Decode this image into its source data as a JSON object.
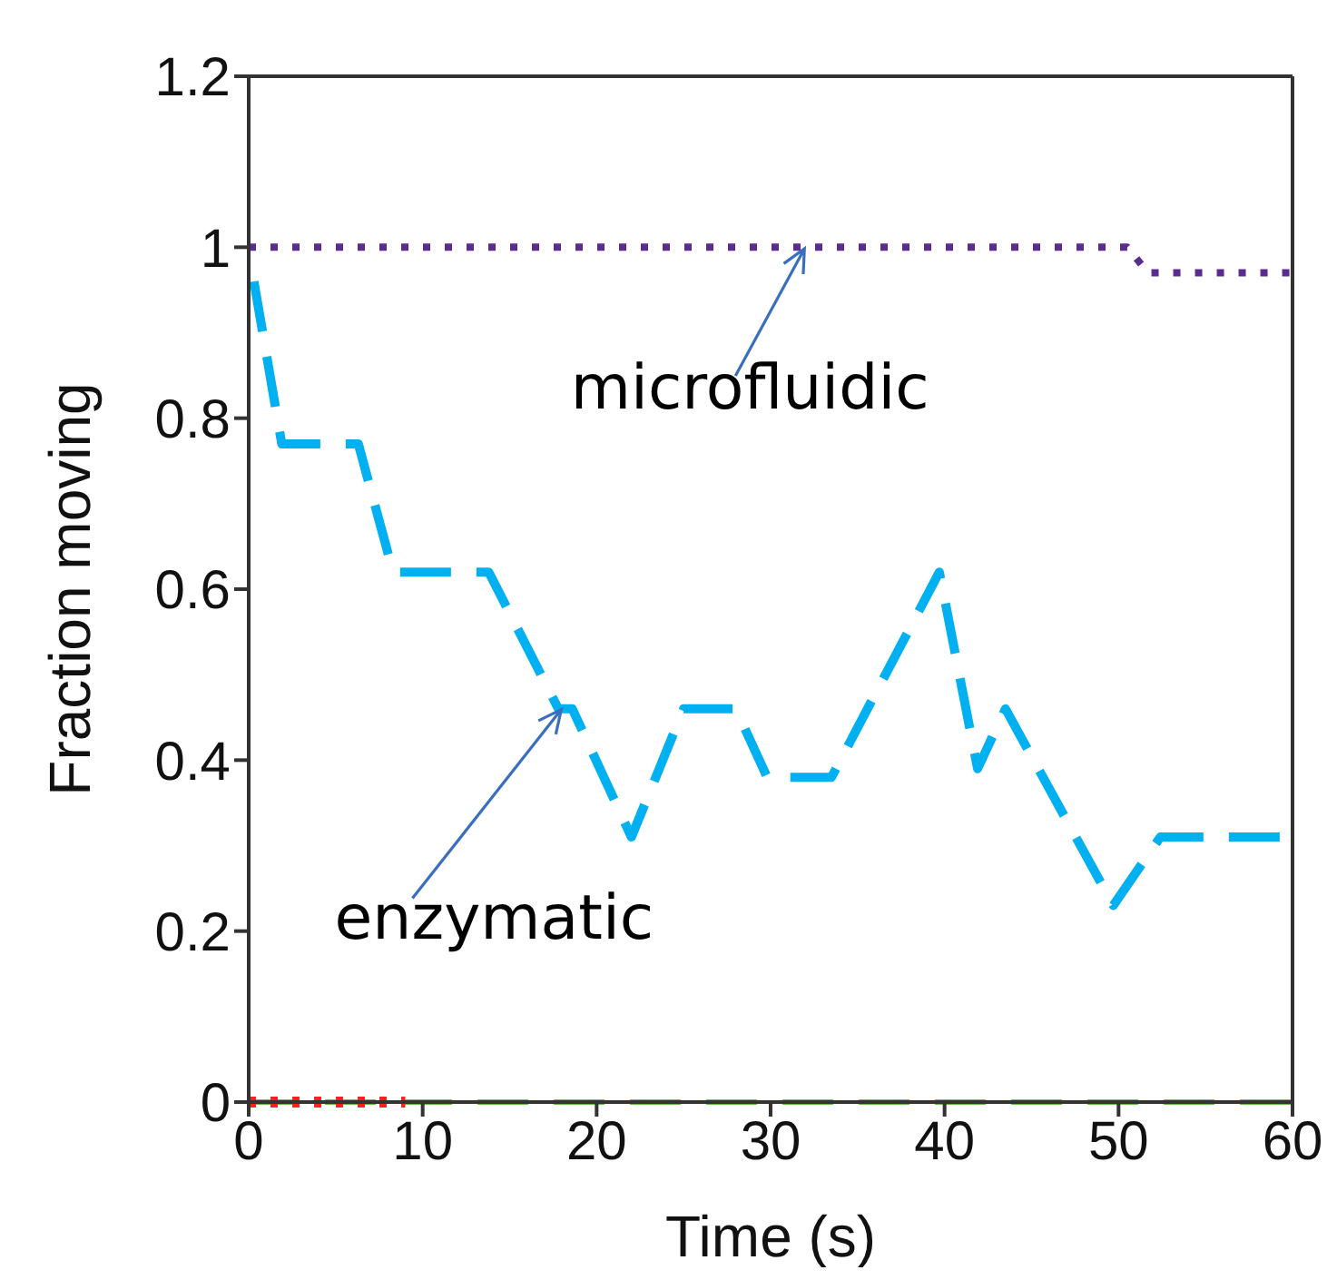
{
  "chart_data": {
    "type": "line",
    "xlabel": "Time (s)",
    "ylabel": "Fraction moving",
    "xlim": [
      0,
      60
    ],
    "xticks": [
      0,
      10,
      20,
      30,
      40,
      50,
      60
    ],
    "ylim": [
      0,
      1.2
    ],
    "yticks": [
      0,
      0.2,
      0.4,
      0.6,
      0.8,
      1,
      1.2
    ],
    "marker": "none",
    "series": [
      {
        "color": "#5b2c8f",
        "line_style": "dotted",
        "x": [
          0,
          50.5,
          51.7,
          60
        ],
        "values": [
          1,
          1,
          0.97,
          0.97
        ]
      },
      {
        "color": "#00b0f0",
        "line_style": "dashed",
        "x": [
          0.3,
          1.9,
          6.3,
          8.3,
          13.8,
          17.8,
          18.6,
          22,
          25,
          28,
          29.8,
          33.5,
          39.7,
          41.9,
          43.5,
          49.7,
          52.4,
          60
        ],
        "values": [
          0.96,
          0.77,
          0.77,
          0.62,
          0.62,
          0.46,
          0.46,
          0.31,
          0.46,
          0.46,
          0.38,
          0.38,
          0.62,
          0.39,
          0.46,
          0.23,
          0.31,
          0.31
        ]
      },
      {
        "color": "#66bb44",
        "line_style": "dashed",
        "x": [
          0,
          60
        ],
        "values": [
          0,
          0
        ]
      },
      {
        "color": "#ff2020",
        "line_style": "dotted",
        "x": [
          0,
          9
        ],
        "values": [
          0,
          0
        ]
      }
    ],
    "annotations": [
      {
        "text": "microfluidic",
        "x": 32,
        "y": 1
      },
      {
        "text": "enzymatic",
        "x": 18,
        "y": 0.46
      }
    ]
  }
}
